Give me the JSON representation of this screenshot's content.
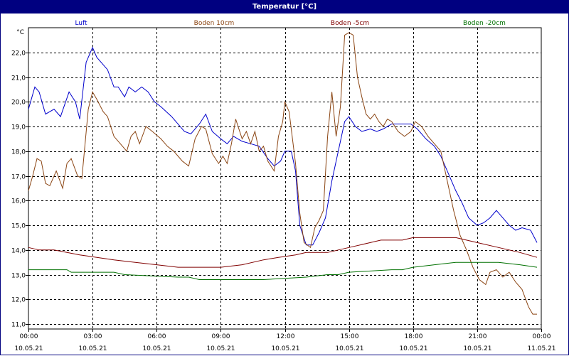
{
  "window": {
    "title": "Temperatur [°C]"
  },
  "chart_data": {
    "type": "line",
    "title": "Temperatur [°C]",
    "ylabel": "°C",
    "xlabel": "",
    "ylim": [
      10.8,
      23.0
    ],
    "xlim": [
      0,
      24
    ],
    "grid": true,
    "legend_placement": "top",
    "yticks": [
      {
        "value": 11.0,
        "label": "11,0"
      },
      {
        "value": 12.0,
        "label": "12,0"
      },
      {
        "value": 13.0,
        "label": "13,0"
      },
      {
        "value": 14.0,
        "label": "14,0"
      },
      {
        "value": 15.0,
        "label": "15,0"
      },
      {
        "value": 16.0,
        "label": "16,0"
      },
      {
        "value": 17.0,
        "label": "17,0"
      },
      {
        "value": 18.0,
        "label": "18,0"
      },
      {
        "value": 19.0,
        "label": "19,0"
      },
      {
        "value": 20.0,
        "label": "20,0"
      },
      {
        "value": 21.0,
        "label": "21,0"
      },
      {
        "value": 22.0,
        "label": "22,0"
      }
    ],
    "xticks": [
      {
        "value": 0,
        "time": "00:00",
        "date": "10.05.21"
      },
      {
        "value": 3,
        "time": "03:00",
        "date": "10.05.21"
      },
      {
        "value": 6,
        "time": "06:00",
        "date": "10.05.21"
      },
      {
        "value": 9,
        "time": "09:00",
        "date": "10.05.21"
      },
      {
        "value": 12,
        "time": "12:00",
        "date": "10.05.21"
      },
      {
        "value": 15,
        "time": "15:00",
        "date": "10.05.21"
      },
      {
        "value": 18,
        "time": "18:00",
        "date": "10.05.21"
      },
      {
        "value": 21,
        "time": "21:00",
        "date": "10.05.21"
      },
      {
        "value": 24,
        "time": "00:00",
        "date": "11.05.21"
      }
    ],
    "series": [
      {
        "name": "Luft",
        "color": "#0000cc",
        "points": [
          [
            0,
            19.7
          ],
          [
            0.3,
            20.6
          ],
          [
            0.5,
            20.4
          ],
          [
            0.8,
            19.5
          ],
          [
            1.2,
            19.7
          ],
          [
            1.5,
            19.4
          ],
          [
            1.9,
            20.4
          ],
          [
            2.2,
            20.0
          ],
          [
            2.4,
            19.3
          ],
          [
            2.7,
            21.6
          ],
          [
            3.0,
            22.2
          ],
          [
            3.2,
            21.8
          ],
          [
            3.7,
            21.3
          ],
          [
            4.0,
            20.6
          ],
          [
            4.2,
            20.6
          ],
          [
            4.5,
            20.2
          ],
          [
            4.7,
            20.6
          ],
          [
            5.0,
            20.4
          ],
          [
            5.3,
            20.6
          ],
          [
            5.6,
            20.4
          ],
          [
            5.9,
            20.0
          ],
          [
            6.2,
            19.8
          ],
          [
            6.7,
            19.4
          ],
          [
            7.3,
            18.8
          ],
          [
            7.6,
            18.7
          ],
          [
            8.0,
            19.1
          ],
          [
            8.3,
            19.5
          ],
          [
            8.6,
            18.8
          ],
          [
            9.0,
            18.5
          ],
          [
            9.3,
            18.3
          ],
          [
            9.6,
            18.6
          ],
          [
            10.0,
            18.4
          ],
          [
            10.4,
            18.3
          ],
          [
            10.8,
            18.2
          ],
          [
            11.2,
            17.7
          ],
          [
            11.5,
            17.4
          ],
          [
            11.8,
            17.6
          ],
          [
            12.0,
            18.0
          ],
          [
            12.3,
            18.0
          ],
          [
            12.5,
            17.2
          ],
          [
            12.7,
            15.0
          ],
          [
            13.0,
            14.2
          ],
          [
            13.3,
            14.2
          ],
          [
            13.6,
            14.7
          ],
          [
            13.9,
            15.3
          ],
          [
            14.2,
            16.8
          ],
          [
            14.5,
            18.0
          ],
          [
            14.8,
            19.2
          ],
          [
            15.0,
            19.4
          ],
          [
            15.3,
            19.0
          ],
          [
            15.6,
            18.8
          ],
          [
            16.0,
            18.9
          ],
          [
            16.3,
            18.8
          ],
          [
            16.6,
            18.9
          ],
          [
            17.0,
            19.1
          ],
          [
            17.5,
            19.1
          ],
          [
            17.9,
            19.1
          ],
          [
            18.2,
            18.9
          ],
          [
            18.6,
            18.5
          ],
          [
            19.0,
            18.2
          ],
          [
            19.3,
            17.8
          ],
          [
            19.6,
            17.2
          ],
          [
            20.0,
            16.4
          ],
          [
            20.3,
            15.9
          ],
          [
            20.6,
            15.3
          ],
          [
            21.0,
            15.0
          ],
          [
            21.3,
            15.1
          ],
          [
            21.6,
            15.3
          ],
          [
            21.9,
            15.6
          ],
          [
            22.2,
            15.3
          ],
          [
            22.5,
            15.0
          ],
          [
            22.8,
            14.8
          ],
          [
            23.1,
            14.9
          ],
          [
            23.5,
            14.8
          ],
          [
            23.8,
            14.3
          ]
        ]
      },
      {
        "name": "Boden 10cm",
        "color": "#8b4513",
        "points": [
          [
            0,
            16.4
          ],
          [
            0.2,
            17.0
          ],
          [
            0.4,
            17.7
          ],
          [
            0.6,
            17.6
          ],
          [
            0.8,
            16.7
          ],
          [
            1.0,
            16.6
          ],
          [
            1.3,
            17.2
          ],
          [
            1.6,
            16.5
          ],
          [
            1.8,
            17.5
          ],
          [
            2.0,
            17.7
          ],
          [
            2.3,
            17.0
          ],
          [
            2.5,
            16.9
          ],
          [
            2.8,
            19.7
          ],
          [
            3.0,
            20.4
          ],
          [
            3.2,
            20.1
          ],
          [
            3.5,
            19.6
          ],
          [
            3.7,
            19.4
          ],
          [
            4.0,
            18.6
          ],
          [
            4.3,
            18.3
          ],
          [
            4.6,
            18.0
          ],
          [
            4.8,
            18.6
          ],
          [
            5.0,
            18.8
          ],
          [
            5.2,
            18.3
          ],
          [
            5.5,
            19.0
          ],
          [
            5.8,
            18.8
          ],
          [
            6.2,
            18.5
          ],
          [
            6.5,
            18.2
          ],
          [
            6.8,
            18.0
          ],
          [
            7.2,
            17.6
          ],
          [
            7.5,
            17.4
          ],
          [
            7.8,
            18.5
          ],
          [
            8.1,
            19.0
          ],
          [
            8.3,
            18.9
          ],
          [
            8.6,
            17.9
          ],
          [
            8.9,
            17.5
          ],
          [
            9.1,
            17.8
          ],
          [
            9.3,
            17.5
          ],
          [
            9.5,
            18.3
          ],
          [
            9.7,
            19.3
          ],
          [
            10.0,
            18.5
          ],
          [
            10.2,
            18.8
          ],
          [
            10.4,
            18.3
          ],
          [
            10.6,
            18.8
          ],
          [
            10.8,
            18.0
          ],
          [
            11.0,
            18.2
          ],
          [
            11.2,
            17.6
          ],
          [
            11.5,
            17.2
          ],
          [
            11.7,
            18.6
          ],
          [
            11.9,
            19.2
          ],
          [
            12.0,
            20.0
          ],
          [
            12.2,
            19.6
          ],
          [
            12.5,
            17.5
          ],
          [
            12.7,
            15.5
          ],
          [
            12.9,
            14.3
          ],
          [
            13.2,
            14.1
          ],
          [
            13.4,
            14.9
          ],
          [
            13.6,
            15.2
          ],
          [
            13.8,
            15.6
          ],
          [
            14.0,
            18.6
          ],
          [
            14.2,
            20.4
          ],
          [
            14.4,
            18.6
          ],
          [
            14.6,
            19.8
          ],
          [
            14.8,
            22.7
          ],
          [
            15.0,
            22.8
          ],
          [
            15.2,
            22.7
          ],
          [
            15.4,
            21.0
          ],
          [
            15.6,
            20.2
          ],
          [
            15.8,
            19.5
          ],
          [
            16.0,
            19.3
          ],
          [
            16.2,
            19.5
          ],
          [
            16.4,
            19.2
          ],
          [
            16.6,
            19.0
          ],
          [
            16.8,
            19.3
          ],
          [
            17.0,
            19.2
          ],
          [
            17.3,
            18.8
          ],
          [
            17.6,
            18.6
          ],
          [
            17.9,
            18.8
          ],
          [
            18.1,
            19.2
          ],
          [
            18.4,
            19.0
          ],
          [
            18.7,
            18.6
          ],
          [
            19.0,
            18.3
          ],
          [
            19.3,
            18.0
          ],
          [
            19.6,
            16.8
          ],
          [
            19.9,
            15.6
          ],
          [
            20.2,
            14.6
          ],
          [
            20.5,
            14.0
          ],
          [
            20.8,
            13.3
          ],
          [
            21.1,
            12.8
          ],
          [
            21.4,
            12.6
          ],
          [
            21.6,
            13.1
          ],
          [
            21.9,
            13.2
          ],
          [
            22.2,
            12.9
          ],
          [
            22.5,
            13.1
          ],
          [
            22.8,
            12.7
          ],
          [
            23.1,
            12.4
          ],
          [
            23.4,
            11.7
          ],
          [
            23.6,
            11.4
          ],
          [
            23.8,
            11.4
          ]
        ]
      },
      {
        "name": "Boden -5cm",
        "color": "#800000",
        "points": [
          [
            0,
            14.1
          ],
          [
            0.5,
            14.0
          ],
          [
            1.2,
            14.0
          ],
          [
            1.8,
            13.9
          ],
          [
            2.4,
            13.8
          ],
          [
            3.2,
            13.7
          ],
          [
            4.0,
            13.6
          ],
          [
            5.0,
            13.5
          ],
          [
            6.0,
            13.4
          ],
          [
            7.0,
            13.3
          ],
          [
            8.0,
            13.3
          ],
          [
            9.0,
            13.3
          ],
          [
            10.0,
            13.4
          ],
          [
            11.0,
            13.6
          ],
          [
            11.7,
            13.7
          ],
          [
            12.5,
            13.8
          ],
          [
            13.0,
            13.9
          ],
          [
            14.0,
            13.9
          ],
          [
            14.5,
            14.0
          ],
          [
            15.0,
            14.1
          ],
          [
            16.0,
            14.3
          ],
          [
            16.5,
            14.4
          ],
          [
            17.5,
            14.4
          ],
          [
            18.0,
            14.5
          ],
          [
            19.0,
            14.5
          ],
          [
            20.0,
            14.5
          ],
          [
            21.0,
            14.3
          ],
          [
            22.0,
            14.1
          ],
          [
            23.0,
            13.9
          ],
          [
            23.8,
            13.7
          ]
        ]
      },
      {
        "name": "Boden -20cm",
        "color": "#007000",
        "points": [
          [
            0,
            13.2
          ],
          [
            1.8,
            13.2
          ],
          [
            2.0,
            13.1
          ],
          [
            4.0,
            13.1
          ],
          [
            4.5,
            13.0
          ],
          [
            7.0,
            12.9
          ],
          [
            7.5,
            12.9
          ],
          [
            8.0,
            12.8
          ],
          [
            10.5,
            12.8
          ],
          [
            11.0,
            12.8
          ],
          [
            13.0,
            12.9
          ],
          [
            14.0,
            13.0
          ],
          [
            14.5,
            13.0
          ],
          [
            15.0,
            13.1
          ],
          [
            17.0,
            13.2
          ],
          [
            17.5,
            13.2
          ],
          [
            18.0,
            13.3
          ],
          [
            19.0,
            13.4
          ],
          [
            20.0,
            13.5
          ],
          [
            21.0,
            13.5
          ],
          [
            22.0,
            13.5
          ],
          [
            23.0,
            13.4
          ],
          [
            23.8,
            13.3
          ]
        ]
      }
    ]
  }
}
